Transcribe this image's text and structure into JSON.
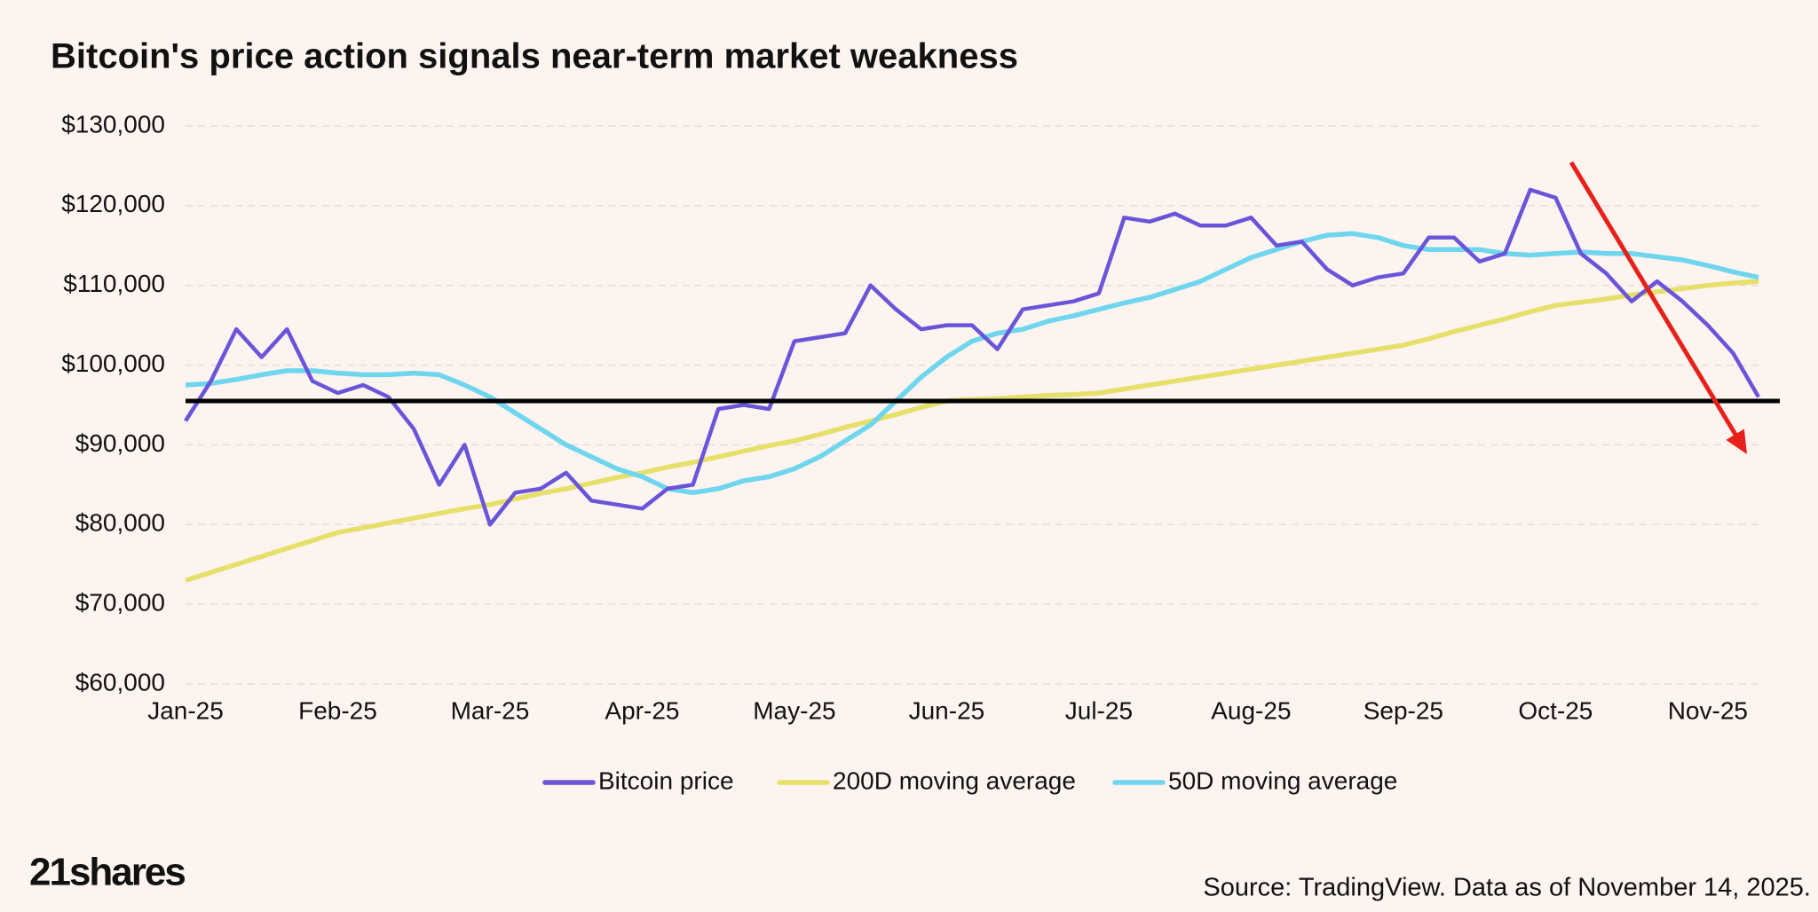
{
  "chart_data": {
    "type": "line",
    "title": "Bitcoin's price action signals near-term market weakness",
    "source": "Source: TradingView. Data as of November 14, 2025.",
    "brand": "21shares",
    "categories": [
      "Jan-25",
      null,
      null,
      null,
      null,
      null,
      "Feb-25",
      null,
      null,
      null,
      null,
      null,
      "Mar-25",
      null,
      null,
      null,
      null,
      null,
      "Apr-25",
      null,
      null,
      null,
      null,
      null,
      "May-25",
      null,
      null,
      null,
      null,
      null,
      "Jun-25",
      null,
      null,
      null,
      null,
      null,
      "Jul-25",
      null,
      null,
      null,
      null,
      null,
      "Aug-25",
      null,
      null,
      null,
      null,
      null,
      "Sep-25",
      null,
      null,
      null,
      null,
      null,
      "Oct-25",
      null,
      null,
      null,
      null,
      null,
      "Nov-25",
      null,
      null
    ],
    "series": [
      {
        "name": "Bitcoin price",
        "color": "#6a55d8",
        "values": [
          93000,
          98000,
          104500,
          101000,
          104500,
          98000,
          96500,
          97500,
          96000,
          92000,
          85000,
          90000,
          80000,
          84000,
          84500,
          86500,
          83000,
          82500,
          82000,
          84500,
          85000,
          94500,
          95000,
          94500,
          103000,
          103500,
          104000,
          110000,
          107000,
          104500,
          105000,
          105000,
          102000,
          107000,
          107500,
          108000,
          109000,
          118500,
          118000,
          119000,
          117500,
          117500,
          118500,
          115000,
          115500,
          112000,
          110000,
          111000,
          111500,
          116000,
          116000,
          113000,
          114000,
          122000,
          121000,
          114000,
          111500,
          108000,
          110500,
          108000,
          105000,
          101500,
          96000
        ]
      },
      {
        "name": "200D moving average",
        "color": "#e6e06b",
        "values": [
          73000,
          74000,
          75000,
          76000,
          77000,
          78000,
          79000,
          79600,
          80200,
          80800,
          81400,
          82000,
          82500,
          83200,
          83900,
          84500,
          85200,
          85900,
          86500,
          87200,
          87800,
          88500,
          89200,
          89900,
          90500,
          91300,
          92200,
          93000,
          93800,
          94700,
          95500,
          95700,
          95800,
          96000,
          96200,
          96300,
          96500,
          97000,
          97500,
          98000,
          98500,
          99000,
          99500,
          100000,
          100500,
          101000,
          101500,
          102000,
          102500,
          103300,
          104200,
          105000,
          105800,
          106700,
          107500,
          107900,
          108300,
          108800,
          109200,
          109600,
          110000,
          110300,
          110500
        ]
      },
      {
        "name": "50D moving average",
        "color": "#6fd6ee",
        "values": [
          97500,
          97700,
          98200,
          98800,
          99300,
          99300,
          99000,
          98800,
          98800,
          99000,
          98800,
          97500,
          96000,
          94000,
          92000,
          90000,
          88500,
          87000,
          86000,
          84500,
          84000,
          84500,
          85500,
          86000,
          87000,
          88500,
          90500,
          92500,
          95500,
          98500,
          101000,
          103000,
          104000,
          104500,
          105500,
          106200,
          107000,
          107800,
          108500,
          109500,
          110500,
          112000,
          113500,
          114500,
          115500,
          116300,
          116500,
          116000,
          115000,
          114500,
          114500,
          114500,
          114000,
          113800,
          114000,
          114200,
          114000,
          114000,
          113600,
          113200,
          112500,
          111700,
          111000
        ]
      }
    ],
    "reference_line": 95500,
    "ylim": [
      60000,
      130000
    ],
    "yticks": [
      {
        "value": 60000,
        "label": "$60,000"
      },
      {
        "value": 70000,
        "label": "$70,000"
      },
      {
        "value": 80000,
        "label": "$80,000"
      },
      {
        "value": 90000,
        "label": "$90,000"
      },
      {
        "value": 100000,
        "label": "$100,000"
      },
      {
        "value": 110000,
        "label": "$110,000"
      },
      {
        "value": 120000,
        "label": "$120,000"
      },
      {
        "value": 130000,
        "label": "$130,000"
      }
    ],
    "grid": true,
    "legend": "bottom"
  }
}
